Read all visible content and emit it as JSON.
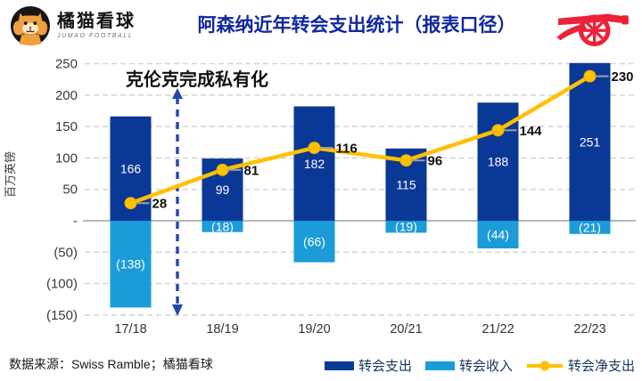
{
  "header": {
    "brand_name": "橘猫看球",
    "brand_subtitle": "JUMAO FOOTBALL",
    "title": "阿森纳近年转会支出统计（报表口径）"
  },
  "chart_data": {
    "type": "bar+line combo",
    "categories": [
      "17/18",
      "18/19",
      "19/20",
      "20/21",
      "21/22",
      "22/23"
    ],
    "series": [
      {
        "name": "转会支出",
        "type": "bar",
        "color": "#0a3896",
        "values": [
          166,
          99,
          182,
          115,
          188,
          251
        ],
        "labels": [
          "166",
          "99",
          "182",
          "115",
          "188",
          "251"
        ]
      },
      {
        "name": "转会收入",
        "type": "bar",
        "color": "#1b9bd8",
        "values": [
          -138,
          -18,
          -66,
          -19,
          -44,
          -21
        ],
        "labels": [
          "(138)",
          "(18)",
          "(66)",
          "(19)",
          "(44)",
          "(21)"
        ]
      },
      {
        "name": "转会净支出",
        "type": "line",
        "color": "#ffc000",
        "values": [
          28,
          81,
          116,
          96,
          144,
          230
        ],
        "labels": [
          "28",
          "81",
          "116",
          "96",
          "144",
          "230"
        ]
      }
    ],
    "ylabel": "百万英镑",
    "ylim": [
      -150,
      250
    ],
    "yticks": [
      {
        "v": 250,
        "label": "250"
      },
      {
        "v": 200,
        "label": "200"
      },
      {
        "v": 150,
        "label": "150"
      },
      {
        "v": 100,
        "label": "100"
      },
      {
        "v": 50,
        "label": "50"
      },
      {
        "v": 0,
        "label": "-"
      },
      {
        "v": -50,
        "label": "(50)"
      },
      {
        "v": -100,
        "label": "(100)"
      },
      {
        "v": -150,
        "label": "(150)"
      }
    ],
    "grid": "dashed horizontal",
    "legend_position": "bottom-right",
    "annotation": {
      "text": "克伦克完成私有化",
      "arrow": "vertical dashed double-headed between 17/18 and 18/19",
      "arrow_color": "#2149a9"
    }
  },
  "footer": {
    "source": "数据来源：Swiss Ramble；橘猫看球"
  }
}
